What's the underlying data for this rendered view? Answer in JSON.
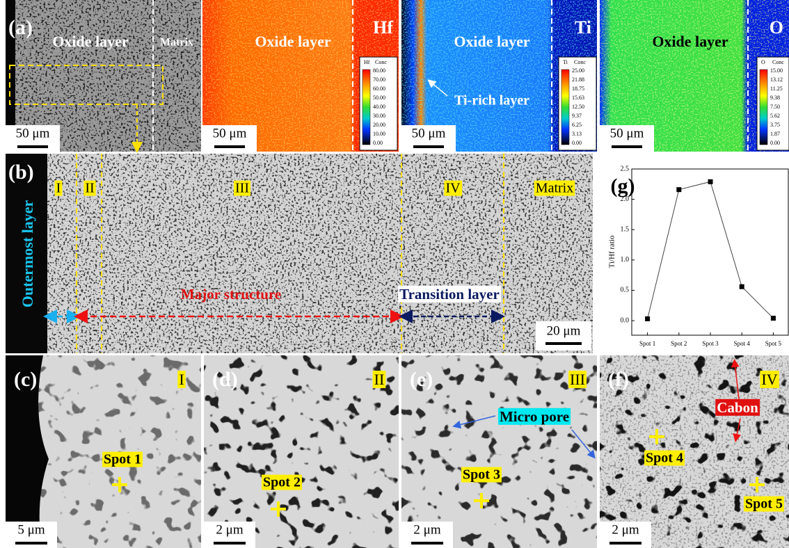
{
  "panel_a": {
    "label": "(a)",
    "title": "Oxide layer",
    "matrix": "Matrix",
    "scale": "50 μm"
  },
  "maps": [
    {
      "element": "Hf",
      "title": "Oxide layer",
      "scale": "50 μm",
      "legend": {
        "element": "Hf",
        "unit": "Conc",
        "ticks": [
          "80.00",
          "70.00",
          "60.00",
          "50.00",
          "40.00",
          "30.00",
          "20.00",
          "10.00",
          "0.00"
        ]
      }
    },
    {
      "element": "Ti",
      "title": "Oxide layer",
      "annotation": "Ti-rich layer",
      "scale": "50 μm",
      "legend": {
        "element": "Ti",
        "unit": "Conc",
        "ticks": [
          "25.00",
          "21.88",
          "18.75",
          "15.63",
          "12.50",
          "9.37",
          "6.25",
          "3.13",
          "0.00"
        ]
      }
    },
    {
      "element": "O",
      "title": "Oxide layer",
      "scale": "50 μm",
      "legend": {
        "element": "O",
        "unit": "Conc",
        "ticks": [
          "15.00",
          "13.12",
          "11.25",
          "9.38",
          "7.50",
          "5.62",
          "3.75",
          "1.87",
          "0.00"
        ]
      }
    }
  ],
  "panel_b": {
    "label": "(b)",
    "side_label": "Outermost layer",
    "regions": [
      "I",
      "II",
      "III",
      "IV",
      "Matrix"
    ],
    "major": "Major structure",
    "transition": "Transition layer",
    "scale": "20 μm"
  },
  "closeups": [
    {
      "label": "(c)",
      "region": "I",
      "spots": [
        "Spot 1"
      ],
      "scale": "5 μm"
    },
    {
      "label": "(d)",
      "region": "II",
      "spots": [
        "Spot 2"
      ],
      "scale": "2 μm"
    },
    {
      "label": "(e)",
      "region": "III",
      "annotation": "Micro pore",
      "spots": [
        "Spot 3"
      ],
      "scale": "2 μm"
    },
    {
      "label": "(f)",
      "region": "IV",
      "annotation": "Cabon",
      "spots": [
        "Spot 4",
        "Spot 5"
      ],
      "scale": "2 μm"
    }
  ],
  "chart_data": {
    "type": "line",
    "label": "(g)",
    "ylabel": "Ti/Hf ratio",
    "categories": [
      "Spot 1",
      "Spot 2",
      "Spot 3",
      "Spot 4",
      "Spot 5"
    ],
    "values": [
      0.03,
      2.16,
      2.29,
      0.56,
      0.04
    ],
    "color": "#000000",
    "ylim": [
      -0.24,
      2.5
    ],
    "yticks": [
      {
        "value": 0,
        "label": "0.0"
      },
      {
        "value": 0.5,
        "label": "0.5"
      },
      {
        "value": 1,
        "label": "1.0"
      },
      {
        "value": 1.5,
        "label": "1.5"
      },
      {
        "value": 2,
        "label": "2.0"
      },
      {
        "value": 2.5,
        "label": "2.5"
      }
    ]
  }
}
